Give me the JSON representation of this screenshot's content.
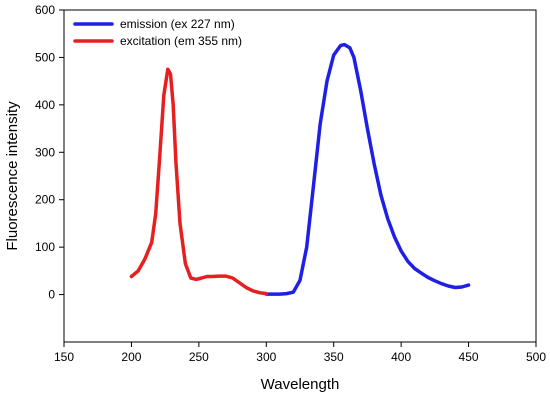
{
  "chart_data": {
    "type": "line",
    "title": "",
    "xlabel": "Wavelength",
    "ylabel": "Fluorescence intensity",
    "xlim": [
      150,
      500
    ],
    "ylim": [
      -100,
      600
    ],
    "xticks": [
      150,
      200,
      250,
      300,
      350,
      400,
      450,
      500
    ],
    "yticks": [
      0,
      100,
      200,
      300,
      400,
      500,
      600
    ],
    "grid": false,
    "legend_position": "top-left",
    "series": [
      {
        "name": "emission (ex 227 nm)",
        "color": "#1f1fe6",
        "x": [
          300,
          310,
          315,
          320,
          325,
          330,
          335,
          340,
          345,
          350,
          355,
          358,
          362,
          365,
          370,
          375,
          380,
          385,
          390,
          395,
          400,
          405,
          410,
          415,
          420,
          425,
          430,
          435,
          440,
          445,
          450
        ],
        "y": [
          1,
          1,
          2,
          5,
          30,
          100,
          230,
          360,
          450,
          505,
          525,
          527,
          520,
          500,
          430,
          350,
          275,
          210,
          160,
          122,
          92,
          70,
          55,
          45,
          36,
          29,
          23,
          18,
          15,
          16,
          20
        ]
      },
      {
        "name": "excitation (em 355 nm)",
        "color": "#e62020",
        "x": [
          200,
          205,
          210,
          215,
          218,
          221,
          224,
          227,
          229,
          231,
          233,
          236,
          240,
          244,
          248,
          252,
          256,
          260,
          265,
          270,
          275,
          280,
          285,
          290,
          295,
          300
        ],
        "y": [
          38,
          50,
          75,
          110,
          170,
          290,
          420,
          475,
          465,
          400,
          280,
          150,
          65,
          35,
          32,
          35,
          38,
          38,
          39,
          39,
          35,
          25,
          15,
          8,
          4,
          2
        ]
      }
    ]
  }
}
